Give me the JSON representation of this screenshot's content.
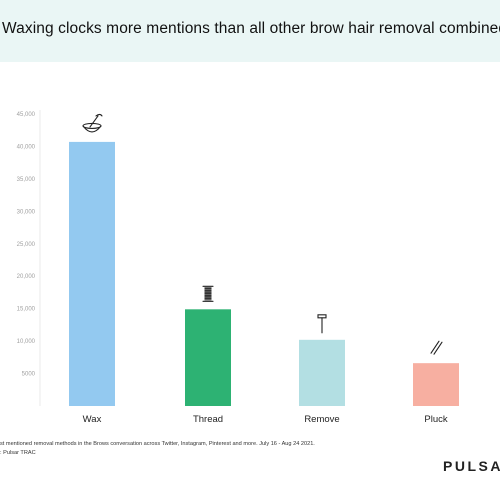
{
  "title": "Waxing clocks more mentions than all other brow hair removal combined",
  "chart_data": {
    "type": "bar",
    "categories": [
      "Wax",
      "Thread",
      "Remove",
      "Pluck"
    ],
    "values": [
      40700,
      14900,
      10200,
      6600
    ],
    "colors": [
      "#93c9f0",
      "#2db273",
      "#b3dfe3",
      "#f7afa1"
    ],
    "icons": [
      "wax-bowl-icon",
      "thread-spool-icon",
      "razor-icon",
      "tweezers-icon"
    ],
    "ylim": [
      0,
      45000
    ],
    "yticks": [
      "",
      "5000",
      "10,000",
      "15,000",
      "20,000",
      "25,000",
      "30,000",
      "35,000",
      "40,000",
      "45,000"
    ],
    "xlabel": "",
    "ylabel": "",
    "grid": false
  },
  "footnote": {
    "line1": "st mentioned removal methods in the Brows conversation across Twitter, Instagram, Pinterest and more. July 16 - Aug 24 2021.",
    "line2": ": Pulsar TRAC"
  },
  "brand": "PULSAR"
}
